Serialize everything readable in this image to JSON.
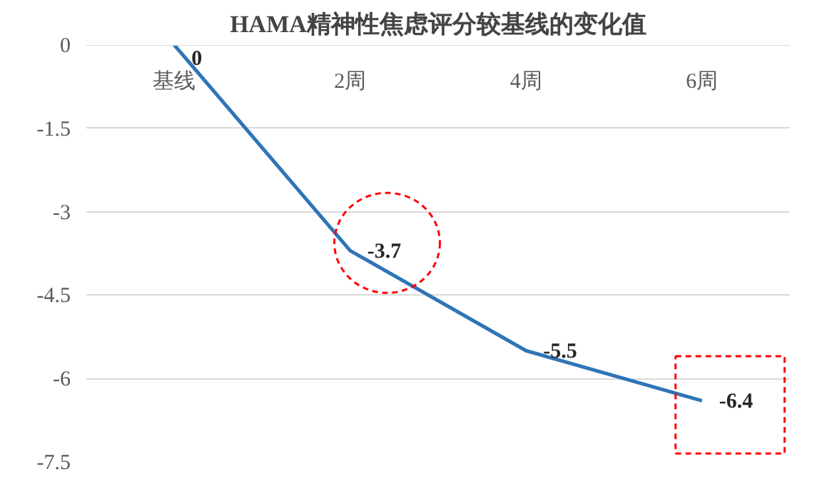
{
  "chart_data": {
    "type": "line",
    "title": "HAMA精神性焦虑评分较基线的变化值",
    "categories": [
      "基线",
      "2周",
      "4周",
      "6周"
    ],
    "series": [
      {
        "color": "#2e75b6",
        "values": [
          0,
          -3.7,
          -5.5,
          -6.4
        ]
      }
    ],
    "ylim": [
      -7.5,
      0
    ],
    "yticks": [
      0,
      -1.5,
      -3,
      -4.5,
      -6,
      -7.5
    ],
    "grid": "y",
    "marker": "none",
    "line_style": "solid",
    "data_labels": true
  }
}
